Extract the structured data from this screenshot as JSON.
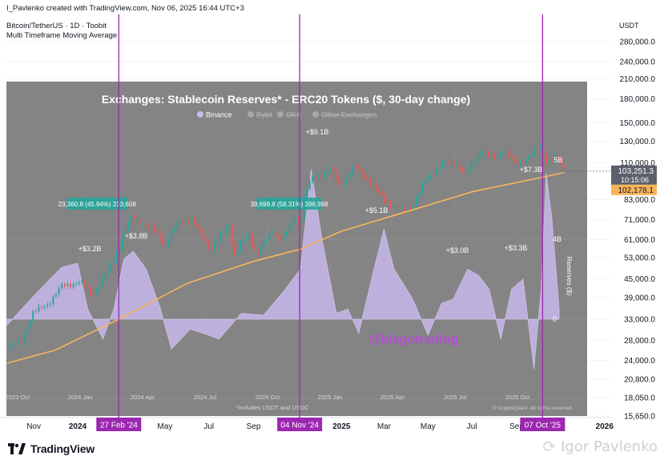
{
  "header": {
    "credit": "I_Pavlenko created with TradingView.com, Nov 06, 2025 16:44 UTC+3",
    "symbol": "Bitcoin/TetherUS · 1D · Toobit",
    "indicator": "Multi Timeframe Moving Average"
  },
  "brand": {
    "logo_text": "TradingView",
    "author_watermark": "Igor Pavlenko"
  },
  "colors": {
    "accent_purple": "#9c27b0",
    "candle_green": "#26a69a",
    "candle_red": "#ef5350",
    "ma_line": "#f9b45a",
    "reserves_fill": "#c9b8ec",
    "overlay_bg": "#808080",
    "price_label_bg": "#5d606b",
    "ma_label_bg": "#f9b45a",
    "annotation_bg": "#26a69a"
  },
  "chart_data": [
    {
      "type": "line",
      "title": "",
      "price_axis_unit": "USDT",
      "price_scale": "log",
      "y_ticks": [
        "280,000.0",
        "240,000.0",
        "210,000.0",
        "180,000.0",
        "150,000.0",
        "130,000.0",
        "110,000.0",
        "83,000.0",
        "71,000.0",
        "61,000.0",
        "53,000.0",
        "45,000.0",
        "39,000.0",
        "33,000.0",
        "28,000.0",
        "24,000.0",
        "20,800.0",
        "18,050.0",
        "15,650.0"
      ],
      "x_ticks": [
        "Nov",
        "2024",
        "Mar",
        "May",
        "Jul",
        "Sep",
        "2025",
        "Mar",
        "May",
        "Jul",
        "Sep",
        "2026"
      ],
      "highlighted_dates": [
        "27 Feb '24",
        "04 Nov '24",
        "07 Oct '25"
      ],
      "last_price": "103,251.3",
      "countdown": "10:15:06",
      "ma_value": "102,178.1",
      "measurements": [
        {
          "label": "23,360.8 (45.94%) 233,608",
          "from": "2023-12-17",
          "to": "2024-03-10"
        },
        {
          "label": "39,699.8 (58.31%) 396,998",
          "from": "2024-09-05",
          "to": "2024-12-05"
        }
      ],
      "series": [
        {
          "kind": "price",
          "points": [
            [
              "2023-09-25",
              26500
            ],
            [
              "2023-10-15",
              27800
            ],
            [
              "2023-10-30",
              34500
            ],
            [
              "2023-11-20",
              37000
            ],
            [
              "2023-12-10",
              42500
            ],
            [
              "2024-01-05",
              44000
            ],
            [
              "2024-01-22",
              40000
            ],
            [
              "2024-02-10",
              47000
            ],
            [
              "2024-02-27",
              57000
            ],
            [
              "2024-03-14",
              72000
            ],
            [
              "2024-04-01",
              69000
            ],
            [
              "2024-04-20",
              64000
            ],
            [
              "2024-05-01",
              58000
            ],
            [
              "2024-05-20",
              70000
            ],
            [
              "2024-06-07",
              70500
            ],
            [
              "2024-06-25",
              61000
            ],
            [
              "2024-07-05",
              56500
            ],
            [
              "2024-07-29",
              69000
            ],
            [
              "2024-08-05",
              54000
            ],
            [
              "2024-08-25",
              64000
            ],
            [
              "2024-09-06",
              54000
            ],
            [
              "2024-09-27",
              65500
            ],
            [
              "2024-10-10",
              60500
            ],
            [
              "2024-10-29",
              72500
            ],
            [
              "2024-11-04",
              68000
            ],
            [
              "2024-11-12",
              88000
            ],
            [
              "2024-11-22",
              98500
            ],
            [
              "2024-12-05",
              100000
            ],
            [
              "2024-12-17",
              106500
            ],
            [
              "2024-12-30",
              92500
            ],
            [
              "2025-01-20",
              107000
            ],
            [
              "2025-02-03",
              98500
            ],
            [
              "2025-02-27",
              84000
            ],
            [
              "2025-03-10",
              79000
            ],
            [
              "2025-04-07",
              76500
            ],
            [
              "2025-04-25",
              94500
            ],
            [
              "2025-05-22",
              110000
            ],
            [
              "2025-06-10",
              109500
            ],
            [
              "2025-06-22",
              100500
            ],
            [
              "2025-07-14",
              122000
            ],
            [
              "2025-08-02",
              113000
            ],
            [
              "2025-08-14",
              123000
            ],
            [
              "2025-09-01",
              108000
            ],
            [
              "2025-09-20",
              117000
            ],
            [
              "2025-10-06",
              125000
            ],
            [
              "2025-10-10",
              110500
            ],
            [
              "2025-10-27",
              115000
            ],
            [
              "2025-11-06",
              103251
            ]
          ]
        },
        {
          "kind": "moving-average",
          "points": [
            [
              "2023-09-25",
              23500
            ],
            [
              "2023-12-01",
              26000
            ],
            [
              "2024-02-27",
              33000
            ],
            [
              "2024-06-01",
              43500
            ],
            [
              "2024-09-01",
              51500
            ],
            [
              "2024-11-04",
              56500
            ],
            [
              "2025-01-01",
              65000
            ],
            [
              "2025-04-01",
              75500
            ],
            [
              "2025-07-01",
              88000
            ],
            [
              "2025-10-07",
              98500
            ],
            [
              "2025-11-06",
              102178
            ]
          ]
        }
      ]
    },
    {
      "type": "area",
      "title": "Exchanges: Stablecoin Reserves* - ERC20 Tokens ($, 30-day change)",
      "legend": [
        "Binance",
        "Bybit",
        "OKX",
        "Other Exchanges"
      ],
      "legend_muted": [
        "Bybit",
        "OKX",
        "Other Exchanges"
      ],
      "ylabel": "Reserves ($)",
      "y_ticks": [
        "4B",
        "0"
      ],
      "x_ticks": [
        "2023 Oct",
        "2024 Jan",
        "2024 Apr",
        "2024 Jul",
        "2024 Oct",
        "2025 Jan",
        "2025 Apr",
        "2025 Jul",
        "2025 Oct"
      ],
      "footnote": "*Includes USDT and USDC",
      "source_watermark": "© CryptoQuant. All rights reserved.",
      "annotations": [
        "+$3.2B",
        "+$3.8B",
        "+$9.1B",
        "+$5.1B",
        "+$3.0B",
        "+$3.3B",
        "+$7.3B",
        "5B"
      ],
      "handle": "@blagotrading",
      "series": [
        {
          "name": "Binance",
          "unit": "billion USD",
          "points": [
            [
              "2023-09-25",
              -0.3
            ],
            [
              "2023-10-15",
              0.5
            ],
            [
              "2023-11-10",
              1.5
            ],
            [
              "2023-12-10",
              2.6
            ],
            [
              "2024-01-01",
              2.8
            ],
            [
              "2024-01-15",
              0.5
            ],
            [
              "2024-02-05",
              -1.0
            ],
            [
              "2024-02-20",
              0.5
            ],
            [
              "2024-03-05",
              3.0
            ],
            [
              "2024-03-18",
              3.4
            ],
            [
              "2024-04-05",
              2.5
            ],
            [
              "2024-04-25",
              0.5
            ],
            [
              "2024-05-10",
              -1.5
            ],
            [
              "2024-06-05",
              -0.5
            ],
            [
              "2024-07-01",
              -0.8
            ],
            [
              "2024-07-15",
              -1.0
            ],
            [
              "2024-08-15",
              0.3
            ],
            [
              "2024-09-15",
              0.2
            ],
            [
              "2024-10-15",
              1.5
            ],
            [
              "2024-11-05",
              2.5
            ],
            [
              "2024-11-20",
              7.5
            ],
            [
              "2024-12-05",
              4.0
            ],
            [
              "2024-12-25",
              0.3
            ],
            [
              "2025-01-10",
              0.5
            ],
            [
              "2025-01-25",
              -0.7
            ],
            [
              "2025-02-15",
              2.5
            ],
            [
              "2025-03-01",
              4.5
            ],
            [
              "2025-03-15",
              2.5
            ],
            [
              "2025-04-10",
              1.0
            ],
            [
              "2025-05-01",
              -0.8
            ],
            [
              "2025-05-20",
              0.8
            ],
            [
              "2025-06-05",
              1.0
            ],
            [
              "2025-06-25",
              2.5
            ],
            [
              "2025-07-10",
              2.2
            ],
            [
              "2025-07-25",
              1.5
            ],
            [
              "2025-08-10",
              -1.0
            ],
            [
              "2025-08-25",
              1.5
            ],
            [
              "2025-09-10",
              2.0
            ],
            [
              "2025-09-25",
              -2.5
            ],
            [
              "2025-10-05",
              1.5
            ],
            [
              "2025-10-12",
              7.3
            ],
            [
              "2025-10-20",
              5.0
            ],
            [
              "2025-10-30",
              0.5
            ]
          ]
        }
      ]
    }
  ]
}
